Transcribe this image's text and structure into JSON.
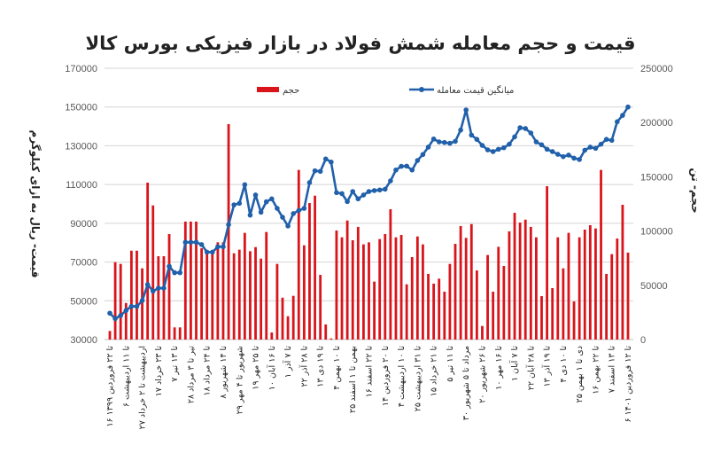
{
  "chart_data": {
    "type": "bar+line",
    "title": "قیمت و حجم معامله شمش فولاد در بازار فیزیکی بورس کالا",
    "ylabel": "قیمت- ریال به ازای کیلوگرم",
    "y2label": "حجم- تن",
    "ylim": [
      30000,
      170000
    ],
    "yticks": [
      "30000",
      "50000",
      "70000",
      "90000",
      "110000",
      "130000",
      "150000",
      "170000"
    ],
    "y2lim": [
      0,
      250000
    ],
    "y2ticks": [
      "0",
      "50000",
      "100000",
      "150000",
      "200000",
      "250000"
    ],
    "grid": true,
    "legend_placement": "top",
    "colors": {
      "bar": "#d9141b",
      "line": "#2160aa",
      "grid": "#d4d4d4"
    },
    "xtick_labels": [
      "۱۶ تا ۲۲ فروردین ۱۳۹۹",
      "۶ تا ۱۱ اردیبهشت",
      "۲۷ اردیبهشت تا ۲ خرداد",
      "۱۷ تا ۲۳ خرداد",
      "۷ تا ۱۳ تیر",
      "۲۸ تیر تا ۳ مرداد",
      "۱۸ تا ۲۴ مرداد",
      "۸ تا ۱۴ شهریور",
      "۲۹ شهریور تا ۴ مهر",
      "۱۹ تا ۲۵ مهر",
      "۱۰ تا ۱۶ آبان",
      "۱ تا ۷ آذر",
      "۲۲ تا ۲۸ آذر",
      "۱۳ تا ۱۹ دی",
      "۴ تا ۱۰ بهمن",
      "۲۵ بهمن تا ۱ اسفند",
      "۱۶ تا ۲۲ اسفند",
      "۱۴ تا ۲۰ فروردین",
      "۴ تا ۱۰ اردیبهشت",
      "۲۵ تا ۳۱ اردیبهشت",
      "۱۵ تا ۲۱ خرداد",
      "۵ تا ۱۱ تیر",
      "۳۰ مرداد تا ۵ شهریور",
      "۲۰ تا ۲۶ شهریور",
      "۱۰ تا ۱۶ مهر",
      "۱ تا ۷ آبان",
      "۲۲ تا ۲۸ آبان",
      "۱۳ تا ۱۹ آذر",
      "۴ تا ۱۰ دی",
      "۲۵ دی تا ۱ بهمن",
      "۱۶ تا ۲۲ بهمن",
      "۷ تا ۱۳ اسفند",
      "۶ تا ۱۲ فروردین ۱۴۰۱"
    ],
    "xtick_every": 3,
    "series": [
      {
        "name": "حجم",
        "type": "bar",
        "axis": "right",
        "values": [
          7900,
          71300,
          69700,
          33700,
          81900,
          81900,
          65600,
          144600,
          123600,
          76800,
          76800,
          97200,
          11200,
          11200,
          108700,
          108700,
          108700,
          84100,
          78700,
          78700,
          89600,
          89600,
          198500,
          79500,
          82800,
          98300,
          81400,
          85200,
          74600,
          99100,
          6500,
          69700,
          38600,
          21500,
          40300,
          156300,
          86800,
          125800,
          132600,
          59600,
          13900,
          1000,
          100500,
          94200,
          109700,
          91500,
          103800,
          87700,
          89600,
          53400,
          92600,
          97200,
          120100,
          94200,
          96400,
          50900,
          76000,
          95000,
          87700,
          60500,
          51500,
          56100,
          44100,
          69700,
          88200,
          104600,
          93700,
          106400,
          63700,
          12500,
          77900,
          44100,
          85500,
          67800,
          99700,
          116800,
          107800,
          110500,
          103800,
          94200,
          40000,
          141300,
          47400,
          94200,
          65600,
          98300,
          35100,
          94200,
          101300,
          105400,
          102400,
          156300,
          60500,
          78700,
          93100,
          124200,
          80100
        ]
      },
      {
        "name": "میانگین قیمت معامله",
        "type": "line",
        "axis": "left",
        "values": [
          43600,
          40800,
          42400,
          45000,
          47100,
          47100,
          50100,
          58400,
          55000,
          56500,
          56500,
          67800,
          64500,
          64500,
          80200,
          80200,
          80200,
          79000,
          75100,
          75100,
          77900,
          77900,
          89300,
          99500,
          100300,
          109900,
          94200,
          104600,
          95700,
          101100,
          102600,
          97700,
          93100,
          88600,
          95000,
          96600,
          97700,
          111000,
          117100,
          116800,
          123200,
          121600,
          105800,
          105300,
          101200,
          106400,
          102600,
          104600,
          106400,
          106900,
          107200,
          107600,
          111900,
          117500,
          119400,
          119500,
          117500,
          122400,
          125500,
          129300,
          133500,
          132000,
          131700,
          131300,
          132300,
          138100,
          148500,
          135500,
          133300,
          130200,
          127900,
          127000,
          128200,
          129000,
          130800,
          134600,
          139300,
          138900,
          136600,
          132000,
          130500,
          128200,
          127000,
          125600,
          124400,
          125200,
          123600,
          122900,
          127700,
          129300,
          128700,
          130800,
          133300,
          132800,
          142400,
          145700,
          150000
        ]
      }
    ]
  }
}
